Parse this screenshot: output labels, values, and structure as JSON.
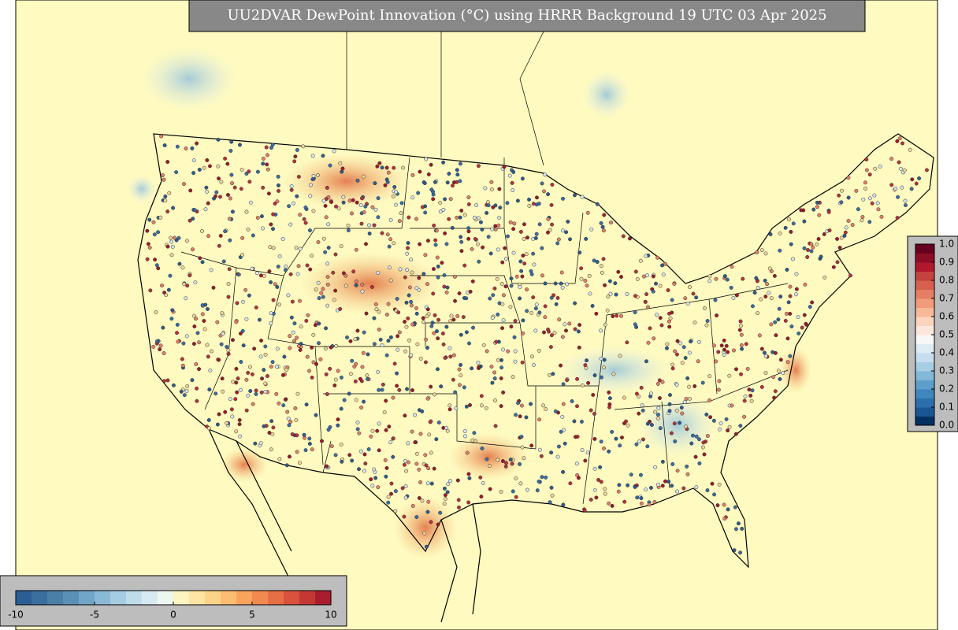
{
  "title": "UU2DVAR DewPoint Innovation (°C) using HRRR Background 19 UTC 03 Apr 2025",
  "innovation_colorbar": {
    "lim": [
      -10,
      10
    ],
    "ticks": [
      -10,
      -5,
      0,
      5,
      10
    ],
    "colors": [
      "#2b5f94",
      "#3a6f9e",
      "#4a7fa8",
      "#5a90b6",
      "#70a6c8",
      "#8ab9d6",
      "#a6cce2",
      "#c0dceb",
      "#d8eaf1",
      "#eef6f0",
      "#fdf4c2",
      "#fde6a4",
      "#fdd38a",
      "#fcbd72",
      "#f9a35d",
      "#f28a50",
      "#e76f46",
      "#d8523c",
      "#c43834",
      "#a91e2e"
    ]
  },
  "weight_colorbar": {
    "lim": [
      0,
      1
    ],
    "ticks": [
      {
        "value": 0,
        "label": "0.0"
      },
      0.1,
      0.2,
      0.3,
      0.4,
      0.5,
      0.6,
      0.7,
      0.8,
      0.9,
      {
        "value": 1,
        "label": "1.0"
      }
    ],
    "colors": [
      "#053061",
      "#1a5693",
      "#2c6fac",
      "#3f87bc",
      "#5e9ecb",
      "#82b8d8",
      "#a6cde3",
      "#c6def0",
      "#e0ecf4",
      "#f7f7f7",
      "#fbe7dc",
      "#fcd3bd",
      "#f8b999",
      "#f29b7a",
      "#e57e63",
      "#d6604d",
      "#c4433e",
      "#b2182b",
      "#8e0d26",
      "#67001f"
    ]
  }
}
